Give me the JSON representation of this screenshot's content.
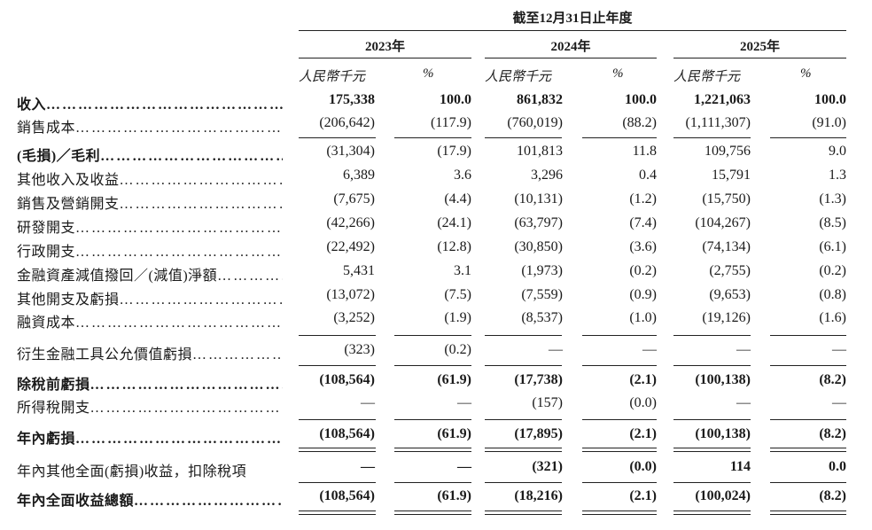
{
  "header": {
    "period": "截至12月31日止年度",
    "years": [
      "2023年",
      "2024年",
      "2025年"
    ],
    "unit_rmb": "人民幣千元",
    "unit_pct": "%"
  },
  "rows": [
    {
      "label": "收入",
      "bold": true,
      "values": [
        "175,338",
        "100.0",
        "861,832",
        "100.0",
        "1,221,063",
        "100.0"
      ]
    },
    {
      "label": "銷售成本",
      "bold": false,
      "values": [
        "(206,642)",
        "(117.9)",
        "(760,019)",
        "(88.2)",
        "(1,111,307)",
        "(91.0)"
      ]
    },
    {
      "label": "(毛損)／毛利",
      "bold": true,
      "values": [
        "(31,304)",
        "(17.9)",
        "101,813",
        "11.8",
        "109,756",
        "9.0"
      ]
    },
    {
      "label": "其他收入及收益",
      "bold": false,
      "values": [
        "6,389",
        "3.6",
        "3,296",
        "0.4",
        "15,791",
        "1.3"
      ]
    },
    {
      "label": "銷售及營銷開支",
      "bold": false,
      "values": [
        "(7,675)",
        "(4.4)",
        "(10,131)",
        "(1.2)",
        "(15,750)",
        "(1.3)"
      ]
    },
    {
      "label": "研發開支",
      "bold": false,
      "values": [
        "(42,266)",
        "(24.1)",
        "(63,797)",
        "(7.4)",
        "(104,267)",
        "(8.5)"
      ]
    },
    {
      "label": "行政開支",
      "bold": false,
      "values": [
        "(22,492)",
        "(12.8)",
        "(30,850)",
        "(3.6)",
        "(74,134)",
        "(6.1)"
      ]
    },
    {
      "label": "金融資產減值撥回／(減值)淨額",
      "bold": false,
      "values": [
        "5,431",
        "3.1",
        "(1,973)",
        "(0.2)",
        "(2,755)",
        "(0.2)"
      ]
    },
    {
      "label": "其他開支及虧損",
      "bold": false,
      "values": [
        "(13,072)",
        "(7.5)",
        "(7,559)",
        "(0.9)",
        "(9,653)",
        "(0.8)"
      ]
    },
    {
      "label": "融資成本",
      "bold": false,
      "values": [
        "(3,252)",
        "(1.9)",
        "(8,537)",
        "(1.0)",
        "(19,126)",
        "(1.6)"
      ]
    },
    {
      "label": "衍生金融工具公允價值虧損",
      "bold": false,
      "values": [
        "(323)",
        "(0.2)",
        "—",
        "—",
        "—",
        "—"
      ]
    },
    {
      "label": "除稅前虧損",
      "bold": true,
      "values": [
        "(108,564)",
        "(61.9)",
        "(17,738)",
        "(2.1)",
        "(100,138)",
        "(8.2)"
      ]
    },
    {
      "label": "所得稅開支",
      "bold": false,
      "values": [
        "—",
        "—",
        "(157)",
        "(0.0)",
        "—",
        "—"
      ]
    },
    {
      "label": "年內虧損",
      "bold": true,
      "values": [
        "(108,564)",
        "(61.9)",
        "(17,895)",
        "(2.1)",
        "(100,138)",
        "(8.2)"
      ]
    },
    {
      "label": "年內其他全面(虧損)收益，扣除稅項",
      "bold": false,
      "boldValues": true,
      "values": [
        "—",
        "—",
        "(321)",
        "(0.0)",
        "114",
        "0.0"
      ]
    },
    {
      "label": "年內全面收益總額",
      "bold": true,
      "values": [
        "(108,564)",
        "(61.9)",
        "(18,216)",
        "(2.1)",
        "(100,024)",
        "(8.2)"
      ]
    }
  ]
}
